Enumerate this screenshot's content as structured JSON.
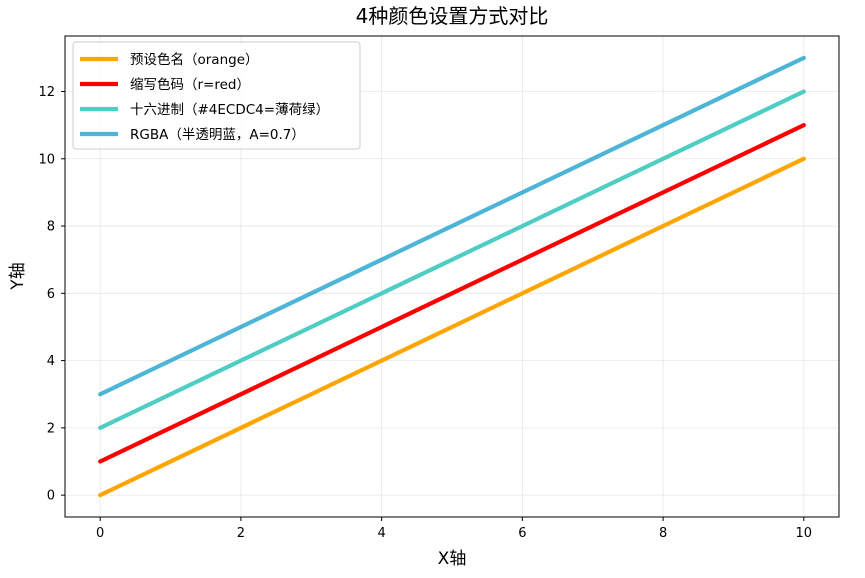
{
  "chart_data": {
    "type": "line",
    "title": "4种颜色设置方式对比",
    "xlabel": "X轴",
    "ylabel": "Y轴",
    "xlim": [
      -0.5,
      10.5
    ],
    "ylim": [
      -0.65,
      13.65
    ],
    "xticks": [
      0,
      2,
      4,
      6,
      8,
      10
    ],
    "yticks": [
      0,
      2,
      4,
      6,
      8,
      10,
      12
    ],
    "grid": true,
    "legend_position": "top-left",
    "x": [
      0,
      10
    ],
    "series": [
      {
        "name": "预设色名（orange）",
        "color": "#FFA500",
        "opacity": 1,
        "values": [
          0,
          10
        ]
      },
      {
        "name": "缩写色码（r=red）",
        "color": "#FF0000",
        "opacity": 1,
        "values": [
          1,
          11
        ]
      },
      {
        "name": "十六进制（#4ECDC4=薄荷绿）",
        "color": "#4ECDC4",
        "opacity": 1,
        "values": [
          2,
          12
        ]
      },
      {
        "name": "RGBA（半透明蓝，A=0.7）",
        "color": "#0096C8",
        "opacity": 0.7,
        "values": [
          3,
          13
        ]
      }
    ]
  }
}
